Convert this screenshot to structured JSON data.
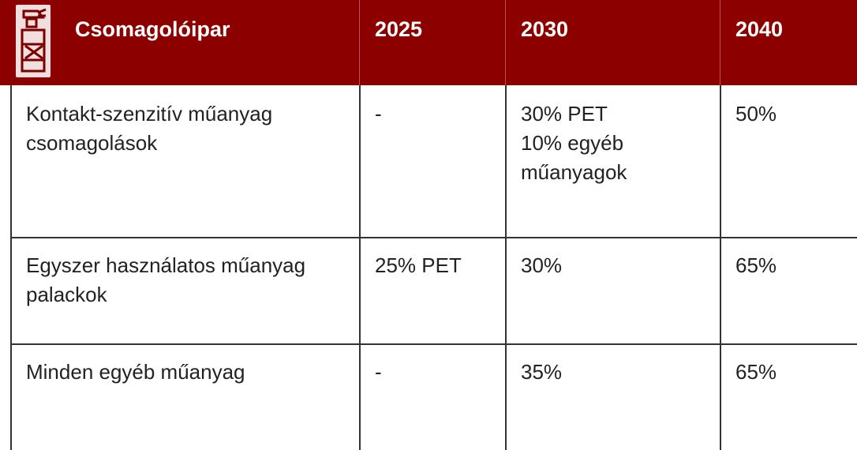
{
  "table": {
    "header": [
      "Csomagolóipar",
      "2025",
      "2030",
      "2040"
    ],
    "rows": [
      [
        "Kontakt-szenzitív műanyag csomagolások",
        "-",
        [
          "30% PET",
          "10% egyéb műanyagok"
        ],
        "50%"
      ],
      [
        "Egyszer használatos műanyag palackok",
        "25% PET",
        "30%",
        "65%"
      ],
      [
        "Minden egyéb műanyag",
        "-",
        "35%",
        "65%"
      ]
    ]
  }
}
